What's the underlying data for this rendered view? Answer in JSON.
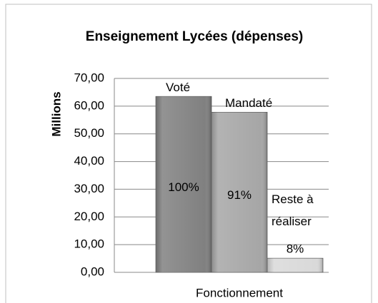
{
  "chart_data": {
    "type": "bar",
    "title": "Enseignement Lycées (dépenses)",
    "y_label": "Millions",
    "categories": [
      "Fonctionnement"
    ],
    "series": [
      {
        "name": "Voté",
        "color": "#808080",
        "values": [
          63.5
        ],
        "annotations": [
          "100%"
        ]
      },
      {
        "name": "Mandaté",
        "color": "#a6a6a6",
        "values": [
          57.8
        ],
        "annotations": [
          "91%"
        ]
      },
      {
        "name": "Reste à réaliser",
        "color": "#d9d9d9",
        "values": [
          5.1
        ],
        "annotations": [
          "8%"
        ]
      }
    ],
    "ylim": [
      0,
      70
    ],
    "yticks": [
      {
        "value": 0,
        "label": "0,00"
      },
      {
        "value": 10,
        "label": "10,00"
      },
      {
        "value": 20,
        "label": "20,00"
      },
      {
        "value": 30,
        "label": "30,00"
      },
      {
        "value": 40,
        "label": "40,00"
      },
      {
        "value": 50,
        "label": "50,00"
      },
      {
        "value": 60,
        "label": "60,00"
      },
      {
        "value": 70,
        "label": "70,00"
      }
    ],
    "grid": true
  }
}
